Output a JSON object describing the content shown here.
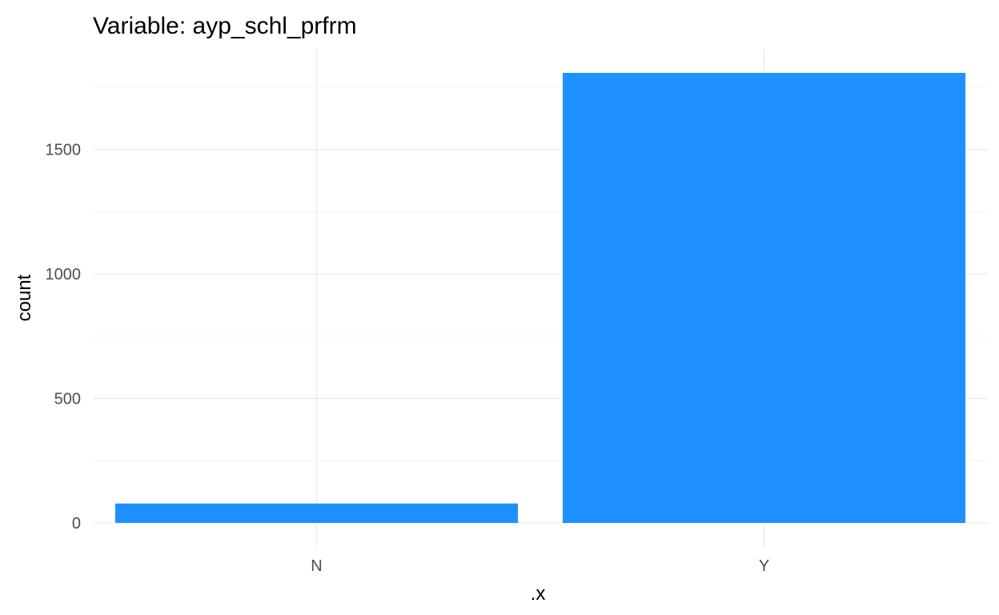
{
  "chart_data": {
    "type": "bar",
    "title": "Variable: ayp_schl_prfrm",
    "xlabel": ".x",
    "ylabel": "count",
    "categories": [
      "N",
      "Y"
    ],
    "values": [
      78,
      1808
    ],
    "ylim": [
      0,
      1808
    ],
    "yticks": [
      0,
      500,
      1000,
      1500
    ],
    "yticks_minor": [
      250,
      750,
      1250,
      1750
    ],
    "grid": true,
    "legend": "none",
    "bar_color": "#1E90FF"
  }
}
